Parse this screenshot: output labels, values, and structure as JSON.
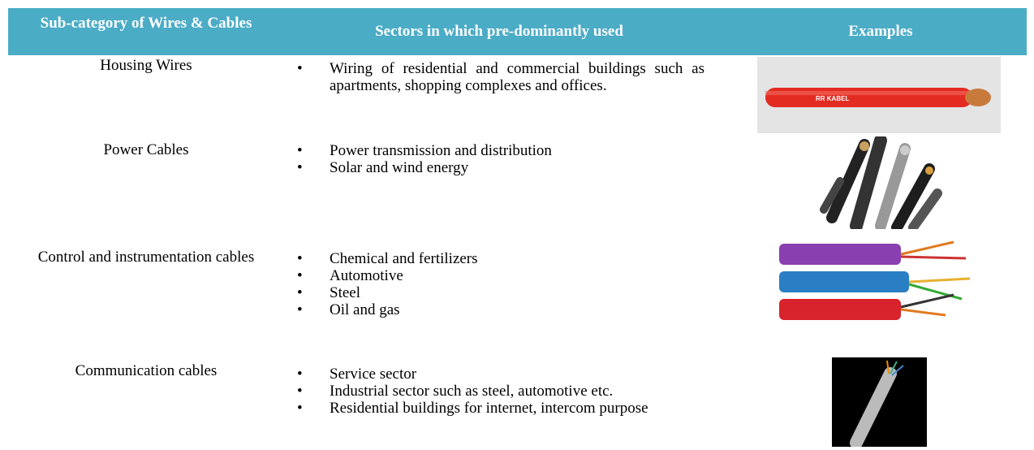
{
  "table": {
    "header": [
      "Sub-category of Wires & Cables",
      "Sectors in which pre-dominantly used",
      "Examples"
    ],
    "rows": [
      {
        "category": "Housing Wires",
        "sectors": [
          "Wiring of residential and commercial buildings such as apartments, shopping complexes and offices."
        ],
        "image_text": "RR KABEL"
      },
      {
        "category": "Power Cables",
        "sectors": [
          "Power transmission and distribution",
          "Solar and wind energy"
        ]
      },
      {
        "category": "Control and instrumentation cables",
        "sectors": [
          "Chemical and fertilizers",
          "Automotive",
          "Steel",
          "Oil and gas"
        ]
      },
      {
        "category": "Communication cables",
        "sectors": [
          "Service sector",
          "Industrial sector such as steel, automotive etc.",
          "Residential buildings for internet, intercom purpose"
        ]
      }
    ]
  }
}
